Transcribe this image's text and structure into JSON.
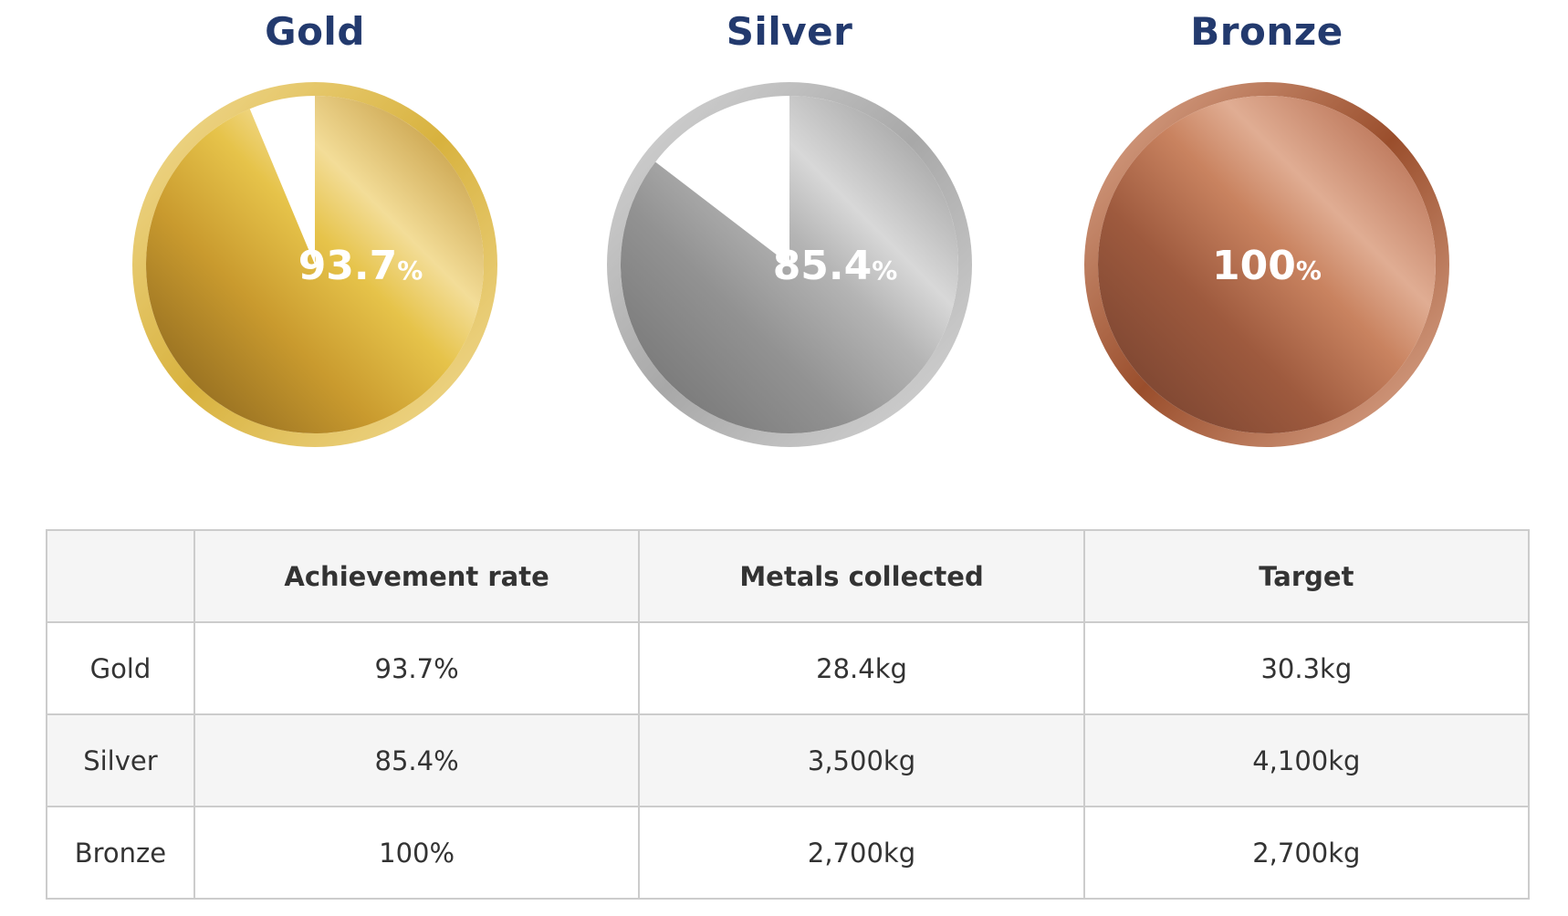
{
  "chart_data": {
    "type": "pie",
    "medals": [
      {
        "name": "Gold",
        "value": 93.7,
        "value_text": "93.7",
        "unit": "%",
        "ring": "#d8b23e",
        "stops": [
          "#7d5a1b",
          "#c99a2e",
          "#e6c34a",
          "#f3dd98",
          "#b58526"
        ]
      },
      {
        "name": "Silver",
        "value": 85.4,
        "value_text": "85.4",
        "unit": "%",
        "ring": "#a8a8a8",
        "stops": [
          "#6e6e6e",
          "#929292",
          "#b4b4b4",
          "#d8d8d8",
          "#8e8e8e"
        ]
      },
      {
        "name": "Bronze",
        "value": 100,
        "value_text": "100",
        "unit": "%",
        "ring": "#9a4e2c",
        "stops": [
          "#6e3d2c",
          "#9e5a3e",
          "#c98360",
          "#e0ad93",
          "#a8583a"
        ]
      }
    ]
  },
  "table": {
    "headers": [
      "",
      "Achievement rate",
      "Metals collected",
      "Target"
    ],
    "rows": [
      [
        "Gold",
        "93.7%",
        "28.4kg",
        "30.3kg"
      ],
      [
        "Silver",
        "85.4%",
        "3,500kg",
        "4,100kg"
      ],
      [
        "Bronze",
        "100%",
        "2,700kg",
        "2,700kg"
      ]
    ]
  },
  "colors": {
    "title": "#233a6e",
    "border": "#cccccc",
    "header_bg": "#f5f5f5"
  }
}
